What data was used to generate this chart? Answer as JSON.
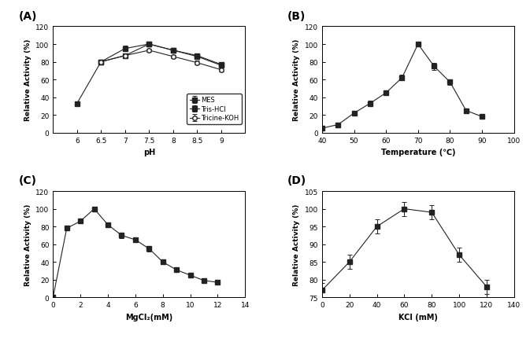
{
  "A": {
    "title": "(A)",
    "xlabel": "pH",
    "ylabel": "Relative Activity (%)",
    "xlim": [
      5.5,
      9.5
    ],
    "ylim": [
      0,
      120
    ],
    "xticks": [
      6.0,
      6.5,
      7.0,
      7.5,
      8.0,
      8.5,
      9.0
    ],
    "xticklabels": [
      "6",
      "6.5",
      "7",
      "7.5",
      "8",
      "8.5",
      "9"
    ],
    "yticks": [
      0,
      20,
      40,
      60,
      80,
      100,
      120
    ],
    "series": [
      {
        "label": "MES",
        "x": [
          6.0,
          6.5,
          7.0,
          7.5,
          8.0,
          8.5,
          9.0
        ],
        "y": [
          33,
          80,
          87,
          100,
          93,
          86,
          76
        ],
        "yerr": [
          2,
          2,
          2,
          2,
          2,
          2,
          2
        ],
        "marker": "s",
        "fillstyle": "full",
        "linestyle": "-"
      },
      {
        "label": "Tris-HCl",
        "x": [
          6.5,
          7.0,
          7.5,
          8.0,
          8.5,
          9.0
        ],
        "y": [
          80,
          95,
          100,
          93,
          87,
          77
        ],
        "yerr": [
          2,
          3,
          2,
          2,
          2,
          2
        ],
        "marker": "s",
        "fillstyle": "full",
        "linestyle": "-"
      },
      {
        "label": "Tricine-KOH",
        "x": [
          6.5,
          7.0,
          7.5,
          8.0,
          8.5,
          9.0
        ],
        "y": [
          80,
          87,
          93,
          86,
          79,
          71
        ],
        "yerr": [
          2,
          2,
          2,
          2,
          2,
          2
        ],
        "marker": "o",
        "fillstyle": "none",
        "linestyle": "-"
      }
    ]
  },
  "B": {
    "title": "(B)",
    "xlabel": "Temperature (℃)",
    "ylabel": "Relative Activity (%)",
    "xlim": [
      40,
      100
    ],
    "ylim": [
      0,
      120
    ],
    "xticks": [
      40,
      50,
      60,
      70,
      80,
      90,
      100
    ],
    "xticklabels": [
      "40",
      "50",
      "60",
      "70",
      "80",
      "90",
      "100"
    ],
    "yticks": [
      0,
      20,
      40,
      60,
      80,
      100,
      120
    ],
    "series": [
      {
        "label": "",
        "x": [
          40,
          45,
          50,
          55,
          60,
          65,
          70,
          75,
          80,
          85,
          90
        ],
        "y": [
          5,
          9,
          22,
          33,
          45,
          62,
          100,
          75,
          57,
          25,
          18
        ],
        "yerr": [
          1,
          2,
          3,
          3,
          3,
          3,
          2,
          4,
          3,
          2,
          2
        ],
        "marker": "s",
        "fillstyle": "full",
        "linestyle": "-"
      }
    ]
  },
  "C": {
    "title": "(C)",
    "xlabel": "MgCl₂(mM)",
    "ylabel": "Relative Activity (%)",
    "xlim": [
      0,
      14
    ],
    "ylim": [
      0,
      120
    ],
    "xticks": [
      0,
      2,
      4,
      6,
      8,
      10,
      12,
      14
    ],
    "xticklabels": [
      "0",
      "2",
      "4",
      "6",
      "8",
      "10",
      "12",
      "14"
    ],
    "yticks": [
      0,
      20,
      40,
      60,
      80,
      100,
      120
    ],
    "series": [
      {
        "label": "",
        "x": [
          0,
          1,
          2,
          3,
          4,
          5,
          6,
          7,
          8,
          9,
          10,
          11,
          12
        ],
        "y": [
          0,
          78,
          86,
          100,
          82,
          70,
          65,
          55,
          40,
          31,
          25,
          19,
          17
        ],
        "yerr": [
          0,
          2,
          2,
          2,
          2,
          3,
          3,
          3,
          2,
          2,
          2,
          2,
          2
        ],
        "marker": "s",
        "fillstyle": "full",
        "linestyle": "-"
      }
    ]
  },
  "D": {
    "title": "(D)",
    "xlabel": "KCl (mM)",
    "ylabel": "Relative Activity (%)",
    "xlim": [
      0,
      140
    ],
    "ylim": [
      75,
      105
    ],
    "xticks": [
      0,
      20,
      40,
      60,
      80,
      100,
      120,
      140
    ],
    "xticklabels": [
      "0",
      "20",
      "40",
      "60",
      "80",
      "100",
      "120",
      "140"
    ],
    "yticks": [
      75,
      80,
      85,
      90,
      95,
      100,
      105
    ],
    "series": [
      {
        "label": "",
        "x": [
          0,
          20,
          40,
          60,
          80,
          100,
          120
        ],
        "y": [
          77,
          85,
          95,
          100,
          99,
          87,
          78
        ],
        "yerr": [
          2,
          2,
          2,
          2,
          2,
          2,
          2
        ],
        "marker": "s",
        "fillstyle": "full",
        "linestyle": "-"
      }
    ]
  },
  "color": "#222222",
  "linewidth": 0.8,
  "markersize": 4,
  "capsize": 2,
  "elinewidth": 0.7
}
